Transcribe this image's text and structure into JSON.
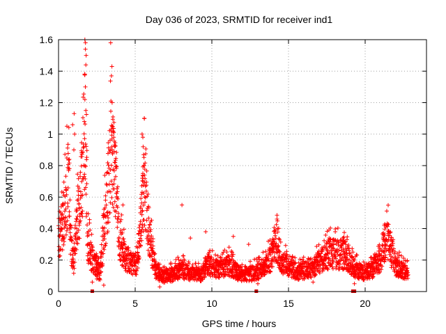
{
  "chart_data": {
    "type": "scatter",
    "title": "Day 036 of 2023, SRMTID for receiver ind1",
    "xlabel": "GPS time / hours",
    "ylabel": "SRMTID / TECUs",
    "xlim": [
      0,
      24
    ],
    "ylim": [
      0,
      1.6
    ],
    "x_ticks": [
      0,
      5,
      10,
      15,
      20
    ],
    "y_ticks": [
      0,
      0.2,
      0.4,
      0.6,
      0.8,
      1,
      1.2,
      1.4,
      1.6
    ],
    "x_tick_labels": [
      "0",
      "5",
      "10",
      "15",
      "20"
    ],
    "y_tick_labels": [
      "0",
      "0.2",
      "0.4",
      "0.6",
      "0.8",
      "1",
      "1.2",
      "1.4",
      "1.6"
    ],
    "grid": true,
    "marker": "+",
    "series_color": "#ff0000",
    "marker_color": "#cc0000",
    "envelope": [
      [
        0.0,
        0.38
      ],
      [
        0.3,
        0.45
      ],
      [
        0.5,
        0.62
      ],
      [
        0.65,
        0.8
      ],
      [
        0.8,
        0.35
      ],
      [
        0.95,
        0.15
      ],
      [
        1.1,
        0.35
      ],
      [
        1.25,
        0.55
      ],
      [
        1.45,
        0.65
      ],
      [
        1.6,
        0.95
      ],
      [
        1.75,
        1.2
      ],
      [
        1.9,
        0.35
      ],
      [
        2.1,
        0.25
      ],
      [
        2.4,
        0.18
      ],
      [
        2.7,
        0.12
      ],
      [
        2.95,
        0.4
      ],
      [
        3.15,
        0.6
      ],
      [
        3.35,
        0.9
      ],
      [
        3.55,
        0.95
      ],
      [
        3.75,
        0.7
      ],
      [
        4.0,
        0.35
      ],
      [
        4.3,
        0.25
      ],
      [
        4.7,
        0.2
      ],
      [
        5.1,
        0.18
      ],
      [
        5.4,
        0.5
      ],
      [
        5.6,
        0.72
      ],
      [
        5.8,
        0.48
      ],
      [
        6.0,
        0.35
      ],
      [
        6.3,
        0.15
      ],
      [
        6.8,
        0.1
      ],
      [
        7.5,
        0.12
      ],
      [
        8.0,
        0.15
      ],
      [
        8.6,
        0.12
      ],
      [
        9.3,
        0.12
      ],
      [
        9.8,
        0.18
      ],
      [
        10.4,
        0.15
      ],
      [
        11.1,
        0.18
      ],
      [
        11.8,
        0.12
      ],
      [
        12.6,
        0.12
      ],
      [
        13.2,
        0.15
      ],
      [
        13.8,
        0.22
      ],
      [
        14.2,
        0.35
      ],
      [
        14.5,
        0.2
      ],
      [
        15.0,
        0.18
      ],
      [
        15.6,
        0.13
      ],
      [
        16.2,
        0.15
      ],
      [
        16.7,
        0.17
      ],
      [
        17.2,
        0.22
      ],
      [
        17.7,
        0.26
      ],
      [
        18.2,
        0.26
      ],
      [
        18.8,
        0.24
      ],
      [
        19.3,
        0.16
      ],
      [
        19.8,
        0.13
      ],
      [
        20.4,
        0.15
      ],
      [
        20.9,
        0.2
      ],
      [
        21.2,
        0.3
      ],
      [
        21.4,
        0.38
      ],
      [
        21.7,
        0.28
      ],
      [
        22.0,
        0.18
      ],
      [
        22.5,
        0.14
      ],
      [
        22.8,
        0.12
      ]
    ],
    "outliers": [
      [
        1.72,
        1.6
      ],
      [
        1.76,
        1.58
      ],
      [
        1.8,
        1.5
      ],
      [
        1.78,
        1.44
      ],
      [
        1.7,
        1.38
      ],
      [
        1.75,
        1.3
      ],
      [
        1.72,
        1.22
      ],
      [
        1.78,
        1.15
      ],
      [
        1.68,
        1.08
      ],
      [
        1.02,
        1.13
      ],
      [
        0.92,
        1.06
      ],
      [
        1.05,
        1.0
      ],
      [
        1.0,
        0.9
      ],
      [
        0.7,
        0.84
      ],
      [
        1.65,
        0.92
      ],
      [
        3.4,
        1.58
      ],
      [
        3.48,
        1.43
      ],
      [
        3.45,
        1.37
      ],
      [
        3.42,
        1.21
      ],
      [
        3.5,
        1.05
      ],
      [
        3.55,
        1.02
      ],
      [
        3.6,
        0.98
      ],
      [
        5.45,
        1.0
      ],
      [
        5.5,
        0.98
      ],
      [
        5.52,
        0.92
      ],
      [
        5.55,
        0.87
      ],
      [
        5.58,
        0.8
      ],
      [
        5.5,
        0.75
      ],
      [
        8.05,
        0.55
      ],
      [
        8.6,
        0.34
      ],
      [
        9.6,
        0.38
      ],
      [
        14.25,
        0.46
      ],
      [
        14.3,
        0.4
      ],
      [
        11.4,
        0.35
      ],
      [
        12.4,
        0.3
      ],
      [
        17.65,
        0.34
      ],
      [
        18.05,
        0.38
      ],
      [
        21.25,
        0.42
      ],
      [
        21.35,
        0.41
      ],
      [
        21.45,
        0.43
      ],
      [
        2.2,
        0.06
      ],
      [
        2.95,
        0.04
      ],
      [
        6.6,
        0.03
      ],
      [
        13.0,
        0.05
      ],
      [
        19.3,
        0.05
      ],
      [
        4.2,
        0.55
      ],
      [
        0.2,
        0.4
      ],
      [
        0.1,
        0.36
      ],
      [
        2.5,
        0.08
      ],
      [
        16.6,
        0.06
      ]
    ],
    "axis_squares": [
      2.2,
      12.9,
      19.2,
      19.3
    ]
  }
}
